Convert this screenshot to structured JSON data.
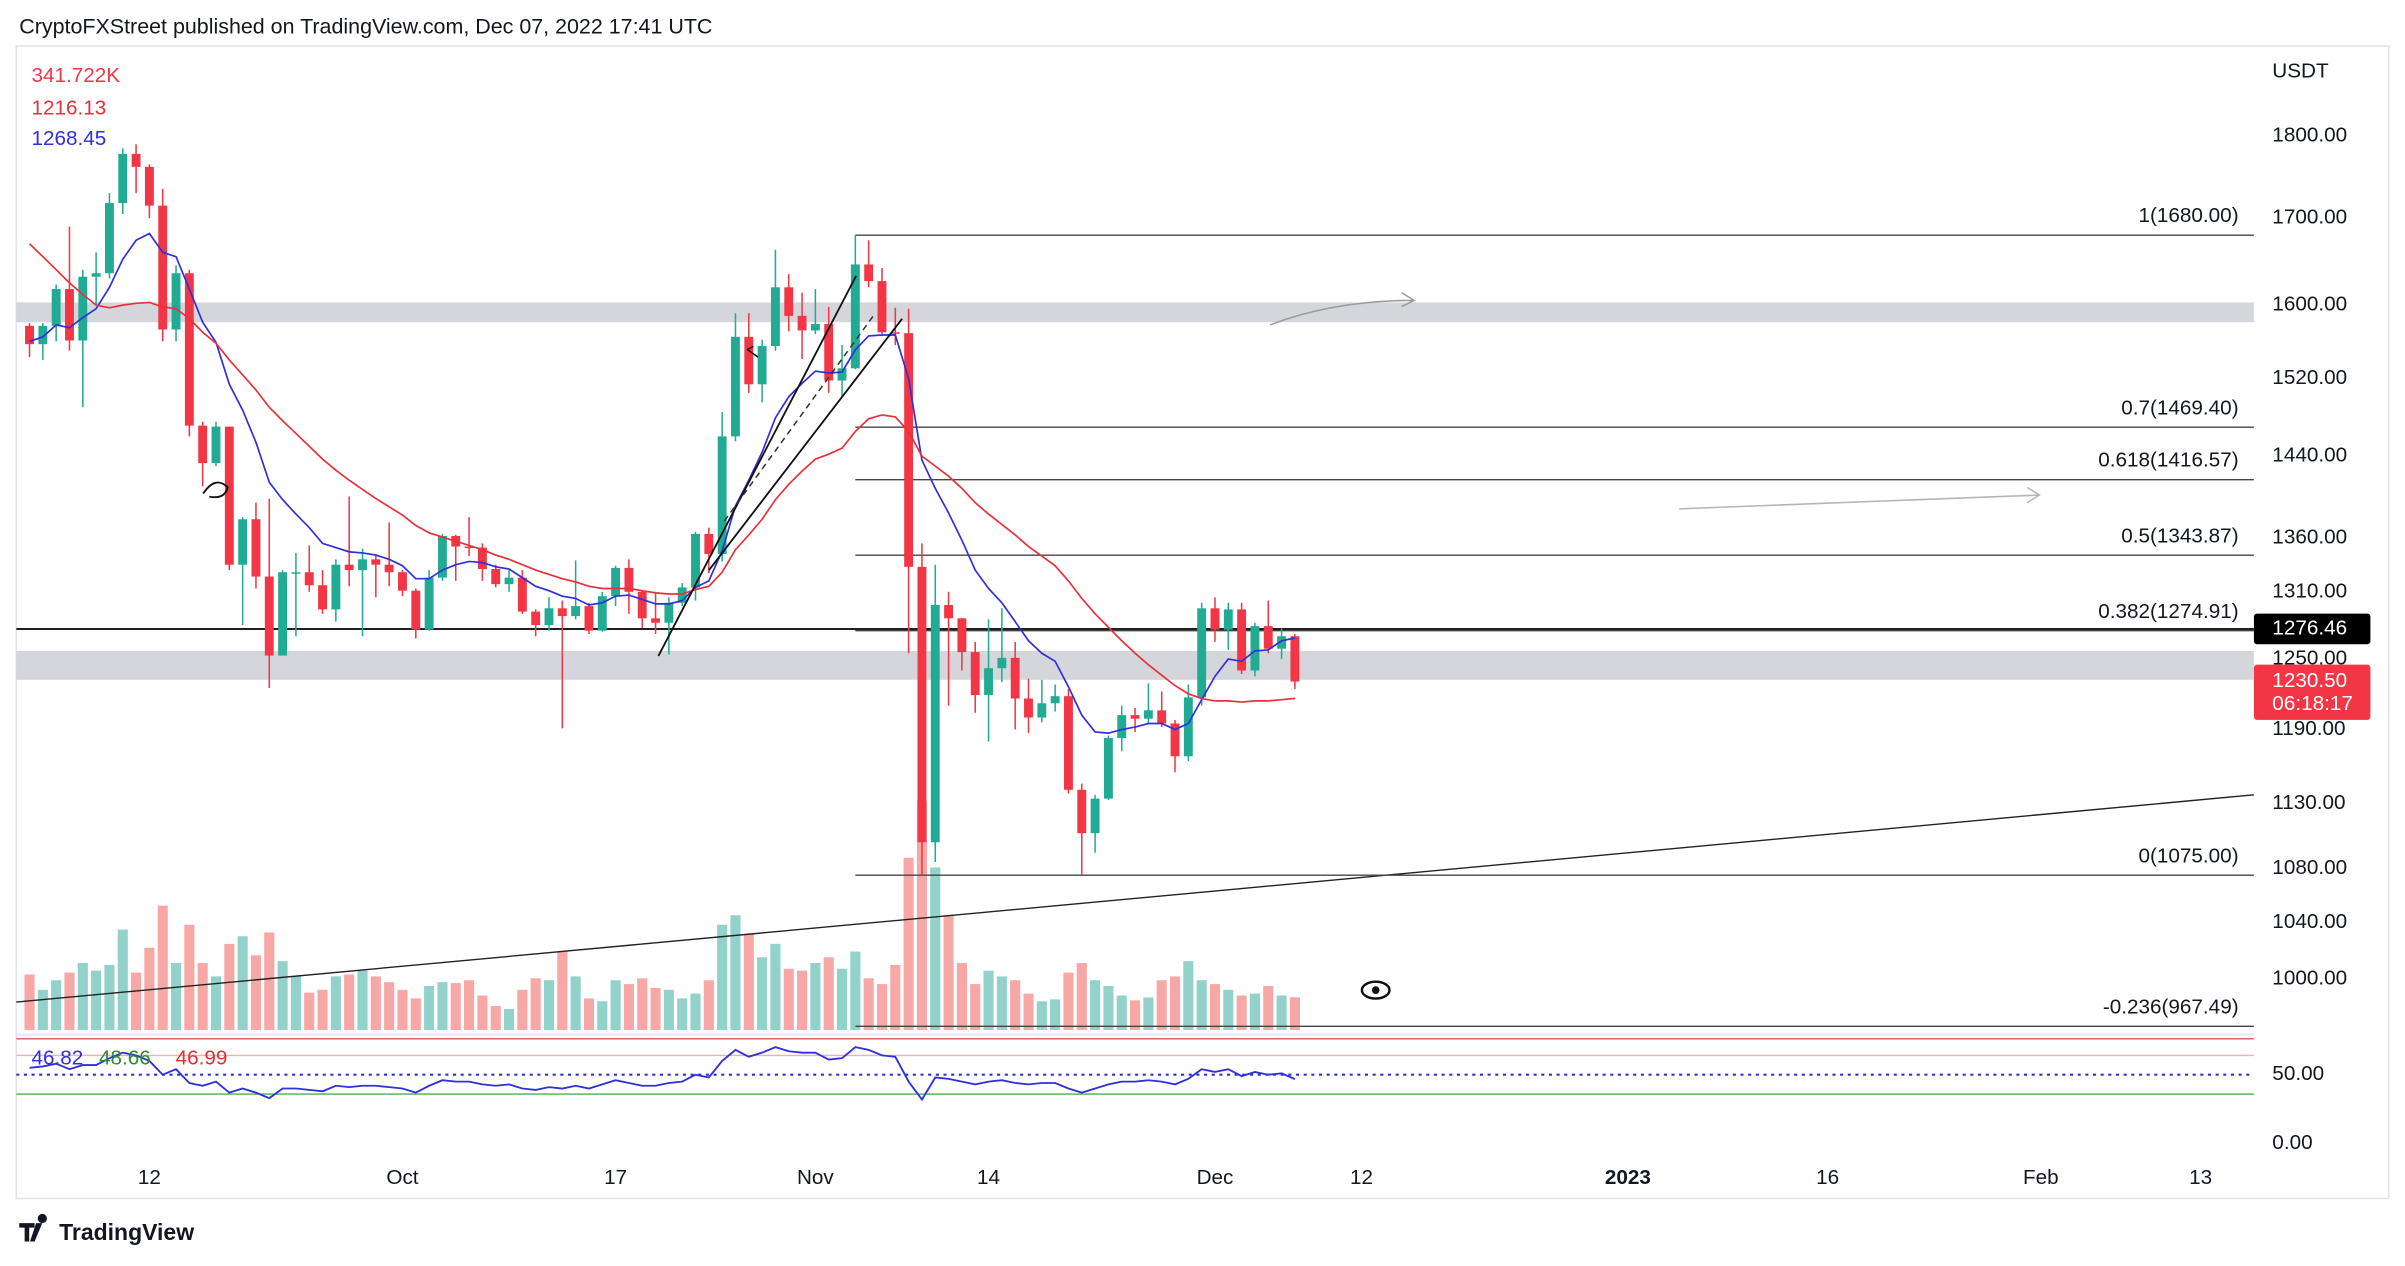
{
  "header": {
    "title": "CryptoFXStreet published on TradingView.com, Dec 07, 2022 17:41 UTC"
  },
  "footer": {
    "brand": "TradingView"
  },
  "chart_data": {
    "type": "candlestick",
    "x": [
      "2022-09-03",
      "2022-09-04",
      "2022-09-05",
      "2022-09-06",
      "2022-09-07",
      "2022-09-08",
      "2022-09-09",
      "2022-09-10",
      "2022-09-11",
      "2022-09-12",
      "2022-09-13",
      "2022-09-14",
      "2022-09-15",
      "2022-09-16",
      "2022-09-17",
      "2022-09-18",
      "2022-09-19",
      "2022-09-20",
      "2022-09-21",
      "2022-09-22",
      "2022-09-23",
      "2022-09-24",
      "2022-09-25",
      "2022-09-26",
      "2022-09-27",
      "2022-09-28",
      "2022-09-29",
      "2022-09-30",
      "2022-10-01",
      "2022-10-02",
      "2022-10-03",
      "2022-10-04",
      "2022-10-05",
      "2022-10-06",
      "2022-10-07",
      "2022-10-08",
      "2022-10-09",
      "2022-10-10",
      "2022-10-11",
      "2022-10-12",
      "2022-10-13",
      "2022-10-14",
      "2022-10-15",
      "2022-10-16",
      "2022-10-17",
      "2022-10-18",
      "2022-10-19",
      "2022-10-20",
      "2022-10-21",
      "2022-10-22",
      "2022-10-23",
      "2022-10-24",
      "2022-10-25",
      "2022-10-26",
      "2022-10-27",
      "2022-10-28",
      "2022-10-29",
      "2022-10-30",
      "2022-10-31",
      "2022-11-01",
      "2022-11-02",
      "2022-11-03",
      "2022-11-04",
      "2022-11-05",
      "2022-11-06",
      "2022-11-07",
      "2022-11-08",
      "2022-11-09",
      "2022-11-10",
      "2022-11-11",
      "2022-11-12",
      "2022-11-13",
      "2022-11-14",
      "2022-11-15",
      "2022-11-16",
      "2022-11-17",
      "2022-11-18",
      "2022-11-19",
      "2022-11-20",
      "2022-11-21",
      "2022-11-22",
      "2022-11-23",
      "2022-11-24",
      "2022-11-25",
      "2022-11-26",
      "2022-11-27",
      "2022-11-28",
      "2022-11-29",
      "2022-11-30",
      "2022-12-01",
      "2022-12-02",
      "2022-12-03",
      "2022-12-04",
      "2022-12-05",
      "2022-12-06",
      "2022-12-07"
    ],
    "open": [
      1577,
      1557,
      1577,
      1618,
      1561,
      1632,
      1636,
      1718,
      1778,
      1762,
      1715,
      1573,
      1636,
      1471,
      1433,
      1470,
      1335,
      1378,
      1324,
      1253,
      1328,
      1328,
      1316,
      1294,
      1335,
      1330,
      1340,
      1335,
      1328,
      1311,
      1276,
      1323,
      1362,
      1352,
      1351,
      1331,
      1317,
      1323,
      1292,
      1280,
      1295,
      1288,
      1297,
      1275,
      1306,
      1332,
      1310,
      1286,
      1282,
      1300,
      1314,
      1364,
      1345,
      1460,
      1565,
      1514,
      1555,
      1620,
      1588,
      1572,
      1579,
      1518,
      1531,
      1646,
      1627,
      1570,
      1569,
      1333,
      1100,
      1298,
      1286,
      1256,
      1219,
      1242,
      1251,
      1216,
      1200,
      1212,
      1218,
      1141,
      1107,
      1134,
      1183,
      1202,
      1199,
      1206,
      1195,
      1168,
      1217,
      1295,
      1276,
      1294,
      1240,
      1279,
      1259,
      1270
    ],
    "high": [
      1580,
      1580,
      1623,
      1690,
      1640,
      1660,
      1730,
      1785,
      1790,
      1765,
      1735,
      1645,
      1640,
      1475,
      1475,
      1470,
      1380,
      1394,
      1398,
      1330,
      1346,
      1353,
      1330,
      1340,
      1400,
      1350,
      1345,
      1375,
      1330,
      1313,
      1330,
      1364,
      1363,
      1380,
      1355,
      1335,
      1330,
      1330,
      1294,
      1305,
      1302,
      1339,
      1300,
      1310,
      1334,
      1340,
      1311,
      1310,
      1305,
      1318,
      1366,
      1370,
      1485,
      1591,
      1591,
      1562,
      1663,
      1635,
      1614,
      1618,
      1598,
      1556,
      1680,
      1674,
      1642,
      1597,
      1596,
      1355,
      1335,
      1310,
      1286,
      1265,
      1285,
      1295,
      1265,
      1233,
      1232,
      1228,
      1224,
      1146,
      1137,
      1185,
      1210,
      1208,
      1229,
      1222,
      1198,
      1228,
      1300,
      1305,
      1300,
      1300,
      1282,
      1302,
      1277,
      1272
    ],
    "low": [
      1543,
      1540,
      1560,
      1550,
      1490,
      1600,
      1630,
      1705,
      1730,
      1700,
      1560,
      1560,
      1460,
      1410,
      1430,
      1330,
      1280,
      1313,
      1225,
      1253,
      1270,
      1310,
      1290,
      1283,
      1315,
      1270,
      1305,
      1315,
      1306,
      1268,
      1275,
      1320,
      1320,
      1343,
      1320,
      1314,
      1310,
      1290,
      1270,
      1275,
      1191,
      1285,
      1272,
      1274,
      1297,
      1290,
      1277,
      1272,
      1254,
      1297,
      1302,
      1327,
      1338,
      1455,
      1505,
      1495,
      1550,
      1571,
      1541,
      1568,
      1505,
      1501,
      1530,
      1620,
      1568,
      1556,
      1255,
      1075,
      1085,
      1210,
      1240,
      1204,
      1180,
      1230,
      1190,
      1187,
      1196,
      1205,
      1138,
      1075,
      1092,
      1133,
      1172,
      1188,
      1195,
      1192,
      1155,
      1164,
      1210,
      1265,
      1258,
      1237,
      1235,
      1255,
      1250,
      1224
    ],
    "close": [
      1557,
      1577,
      1618,
      1561,
      1632,
      1636,
      1718,
      1778,
      1762,
      1715,
      1573,
      1636,
      1471,
      1433,
      1470,
      1335,
      1378,
      1324,
      1253,
      1328,
      1328,
      1316,
      1294,
      1335,
      1330,
      1340,
      1335,
      1328,
      1311,
      1276,
      1323,
      1362,
      1352,
      1351,
      1331,
      1317,
      1323,
      1292,
      1280,
      1295,
      1288,
      1297,
      1275,
      1306,
      1332,
      1310,
      1286,
      1282,
      1300,
      1314,
      1364,
      1345,
      1460,
      1565,
      1514,
      1555,
      1620,
      1588,
      1572,
      1579,
      1518,
      1531,
      1646,
      1627,
      1570,
      1569,
      1333,
      1100,
      1298,
      1286,
      1256,
      1219,
      1242,
      1251,
      1216,
      1200,
      1212,
      1218,
      1141,
      1107,
      1134,
      1183,
      1202,
      1199,
      1206,
      1195,
      1168,
      1217,
      1295,
      1276,
      1294,
      1240,
      1279,
      1259,
      1270,
      1230.5
    ],
    "up_color": "#22ab94",
    "down_color": "#f23645",
    "log_scale": true,
    "y_unit": "USDT",
    "ylim": [
      965,
      1917
    ],
    "yticks": [
      {
        "value": 1800,
        "label": "1800.00"
      },
      {
        "value": 1700,
        "label": "1700.00"
      },
      {
        "value": 1600,
        "label": "1600.00"
      },
      {
        "value": 1520,
        "label": "1520.00"
      },
      {
        "value": 1440,
        "label": "1440.00"
      },
      {
        "value": 1360,
        "label": "1360.00"
      },
      {
        "value": 1310,
        "label": "1310.00"
      },
      {
        "value": 1250,
        "label": "1250.00"
      },
      {
        "value": 1190,
        "label": "1190.00"
      },
      {
        "value": 1130,
        "label": "1130.00"
      },
      {
        "value": 1080,
        "label": "1080.00"
      },
      {
        "value": 1040,
        "label": "1040.00"
      },
      {
        "value": 1000,
        "label": "1000.00"
      }
    ],
    "xlim": [
      "2022-09-02",
      "2023-02-17"
    ],
    "xticks": [
      {
        "value": "2022-09-12",
        "label": "12"
      },
      {
        "value": "2022-10-01",
        "label": "Oct"
      },
      {
        "value": "2022-10-17",
        "label": "17"
      },
      {
        "value": "2022-11-01",
        "label": "Nov"
      },
      {
        "value": "2022-11-14",
        "label": "14"
      },
      {
        "value": "2022-12-01",
        "label": "Dec"
      },
      {
        "value": "2022-12-12",
        "label": "12"
      },
      {
        "value": "2023-01-01",
        "label": "2023"
      },
      {
        "value": "2023-01-16",
        "label": "16"
      },
      {
        "value": "2023-02-01",
        "label": "Feb"
      },
      {
        "value": "2023-02-13",
        "label": "13"
      }
    ],
    "series": [
      {
        "color": "#2f2fdc",
        "values": [
          1560,
          1565,
          1578,
          1575,
          1586,
          1596,
          1620,
          1652,
          1674,
          1682,
          1660,
          1655,
          1618,
          1581,
          1559,
          1514,
          1487,
          1454,
          1414,
          1397,
          1383,
          1370,
          1355,
          1351,
          1347,
          1346,
          1344,
          1340,
          1334,
          1322,
          1322,
          1330,
          1335,
          1338,
          1337,
          1333,
          1331,
          1323,
          1315,
          1311,
          1306,
          1304,
          1298,
          1300,
          1306,
          1307,
          1303,
          1299,
          1299,
          1302,
          1314,
          1320,
          1348,
          1391,
          1416,
          1444,
          1479,
          1501,
          1515,
          1528,
          1526,
          1527,
          1551,
          1566,
          1567,
          1567,
          1520,
          1436,
          1408,
          1384,
          1358,
          1330,
          1313,
          1300,
          1283,
          1266,
          1255,
          1248,
          1226,
          1202,
          1188,
          1187,
          1190,
          1192,
          1195,
          1195,
          1190,
          1195,
          1215,
          1235,
          1250,
          1248,
          1257,
          1258,
          1266,
          1268.45
        ]
      },
      {
        "color": "#e8303a",
        "values": [
          1670,
          1655,
          1640,
          1625,
          1612,
          1600,
          1597,
          1600,
          1602,
          1603,
          1598,
          1596,
          1585,
          1570,
          1558,
          1540,
          1524,
          1508,
          1490,
          1476,
          1463,
          1450,
          1437,
          1426,
          1416,
          1407,
          1398,
          1390,
          1382,
          1372,
          1365,
          1361,
          1357,
          1353,
          1349,
          1344,
          1340,
          1335,
          1330,
          1326,
          1322,
          1319,
          1315,
          1313,
          1313,
          1313,
          1311,
          1309,
          1308,
          1308,
          1312,
          1315,
          1328,
          1349,
          1363,
          1378,
          1397,
          1412,
          1425,
          1437,
          1442,
          1448,
          1465,
          1478,
          1482,
          1480,
          1465,
          1440,
          1430,
          1420,
          1408,
          1394,
          1383,
          1373,
          1363,
          1352,
          1343,
          1334,
          1320,
          1304,
          1290,
          1278,
          1266,
          1255,
          1245,
          1236,
          1227,
          1220,
          1216,
          1214,
          1214,
          1213,
          1214,
          1214,
          1215,
          1216.13
        ]
      }
    ],
    "volume": {
      "values": [
        580000,
        420000,
        520000,
        600000,
        700000,
        620000,
        680000,
        1050000,
        600000,
        860000,
        1300000,
        700000,
        1100000,
        700000,
        560000,
        900000,
        980000,
        780000,
        1020000,
        720000,
        560000,
        390000,
        420000,
        560000,
        580000,
        620000,
        560000,
        500000,
        420000,
        330000,
        460000,
        500000,
        490000,
        520000,
        360000,
        250000,
        220000,
        420000,
        540000,
        520000,
        820000,
        560000,
        330000,
        300000,
        520000,
        480000,
        540000,
        440000,
        420000,
        330000,
        380000,
        520000,
        1100000,
        1200000,
        1000000,
        760000,
        900000,
        640000,
        620000,
        700000,
        760000,
        640000,
        820000,
        540000,
        480000,
        680000,
        1800000,
        2400000,
        1700000,
        1200000,
        700000,
        480000,
        620000,
        560000,
        520000,
        380000,
        300000,
        320000,
        600000,
        700000,
        520000,
        460000,
        360000,
        310000,
        340000,
        520000,
        560000,
        720000,
        520000,
        480000,
        420000,
        360000,
        380000,
        460000,
        360000,
        341722
      ],
      "legend_label": "341.722K",
      "ylim": [
        0,
        4600000
      ],
      "up_color": "#92d2ca",
      "down_color": "#f7a8a6"
    },
    "zones": [
      [
        1581,
        1603
      ],
      [
        1232,
        1257
      ]
    ],
    "hline": 1276.46,
    "last_price": {
      "value": 1230.5,
      "label": "1230.50"
    },
    "countdown": "06:18:17",
    "fib": {
      "x": [
        "2022-11-04",
        "2023-02-17"
      ],
      "levels": [
        {
          "value": 1680,
          "label": "1(1680.00)"
        },
        {
          "value": 1469.4,
          "label": "0.7(1469.40)"
        },
        {
          "value": 1416.57,
          "label": "0.618(1416.57)"
        },
        {
          "value": 1343.87,
          "label": "0.5(1343.87)"
        },
        {
          "value": 1274.91,
          "label": "0.382(1274.91)"
        },
        {
          "value": 1075,
          "label": "0(1075.00)"
        },
        {
          "value": 967.49,
          "label": "-0.236(967.49)"
        }
      ]
    },
    "trendline": {
      "x": [
        "2022-09-02",
        "2023-02-17"
      ],
      "y": [
        984,
        1137
      ]
    },
    "rsi": {
      "ylim": [
        -12,
        78
      ],
      "yticks": [
        {
          "value": 50,
          "label": "50.00"
        },
        {
          "value": 0,
          "label": "0.00"
        }
      ],
      "midline": 50,
      "color": "#2f2fdc",
      "values": [
        55,
        56,
        58,
        54,
        57,
        57,
        62,
        66,
        64,
        60,
        50,
        54,
        44,
        42,
        45,
        37,
        40,
        37,
        33,
        40,
        40,
        39,
        38,
        42,
        41,
        42,
        42,
        41,
        40,
        37,
        42,
        46,
        45,
        45,
        43,
        42,
        43,
        40,
        39,
        41,
        40,
        42,
        40,
        43,
        46,
        44,
        42,
        42,
        44,
        45,
        50,
        48,
        60,
        68,
        63,
        66,
        70,
        67,
        66,
        66,
        61,
        62,
        70,
        68,
        64,
        63,
        45,
        32,
        48,
        47,
        45,
        43,
        45,
        46,
        44,
        43,
        44,
        44,
        40,
        37,
        40,
        43,
        45,
        45,
        46,
        45,
        43,
        47,
        54,
        52,
        54,
        49,
        52,
        50,
        51,
        46.82
      ],
      "other": [
        {
          "value": 48.66,
          "color": "#2e8b2e"
        },
        {
          "value": 46.99,
          "color": "#e03030"
        }
      ],
      "levels": [
        {
          "value": 76,
          "color": "#e05555"
        },
        {
          "value": 64,
          "color": "#f0b0b0"
        },
        {
          "value": 36,
          "color": "#4caf50"
        }
      ]
    }
  }
}
